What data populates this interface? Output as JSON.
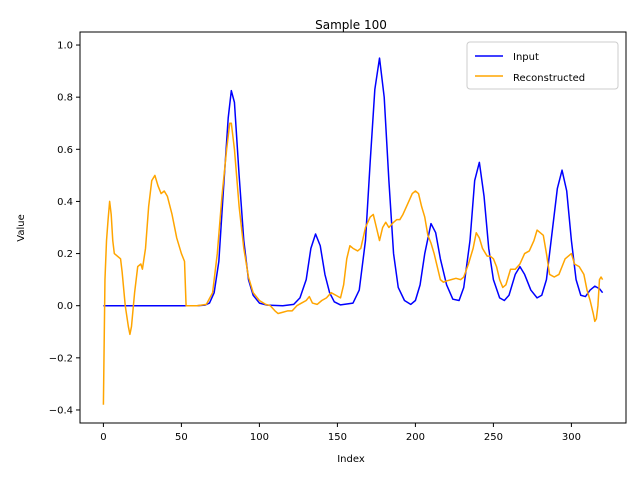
{
  "chart_data": {
    "type": "line",
    "title": "Sample 100",
    "xlabel": "Index",
    "ylabel": "Value",
    "xlim": [
      -15,
      335
    ],
    "ylim": [
      -0.45,
      1.05
    ],
    "xticks": [
      0,
      50,
      100,
      150,
      200,
      250,
      300
    ],
    "yticks": [
      -0.4,
      -0.2,
      0.0,
      0.2,
      0.4,
      0.6,
      0.8,
      1.0
    ],
    "xtick_labels": [
      "0",
      "50",
      "100",
      "150",
      "200",
      "250",
      "300"
    ],
    "ytick_labels": [
      "−0.4",
      "−0.2",
      "0.0",
      "0.2",
      "0.4",
      "0.6",
      "0.8",
      "1.0"
    ],
    "grid": false,
    "legend_position": "top-right",
    "series": [
      {
        "name": "Input",
        "color": "#0000ff",
        "points": [
          [
            0,
            0
          ],
          [
            55,
            0
          ],
          [
            60,
            0
          ],
          [
            65,
            0.002
          ],
          [
            68,
            0.01
          ],
          [
            71,
            0.05
          ],
          [
            74,
            0.17
          ],
          [
            77,
            0.45
          ],
          [
            80,
            0.72
          ],
          [
            82,
            0.825
          ],
          [
            84,
            0.78
          ],
          [
            87,
            0.5
          ],
          [
            90,
            0.25
          ],
          [
            93,
            0.1
          ],
          [
            96,
            0.04
          ],
          [
            100,
            0.01
          ],
          [
            105,
            0.002
          ],
          [
            115,
            0
          ],
          [
            122,
            0.005
          ],
          [
            126,
            0.03
          ],
          [
            130,
            0.1
          ],
          [
            133,
            0.22
          ],
          [
            136,
            0.275
          ],
          [
            139,
            0.23
          ],
          [
            142,
            0.12
          ],
          [
            145,
            0.05
          ],
          [
            148,
            0.015
          ],
          [
            152,
            0.003
          ],
          [
            160,
            0.01
          ],
          [
            164,
            0.06
          ],
          [
            168,
            0.25
          ],
          [
            171,
            0.55
          ],
          [
            174,
            0.83
          ],
          [
            177,
            0.95
          ],
          [
            180,
            0.8
          ],
          [
            183,
            0.48
          ],
          [
            186,
            0.2
          ],
          [
            189,
            0.07
          ],
          [
            193,
            0.02
          ],
          [
            197,
            0.005
          ],
          [
            200,
            0.02
          ],
          [
            203,
            0.08
          ],
          [
            206,
            0.2
          ],
          [
            210,
            0.315
          ],
          [
            213,
            0.28
          ],
          [
            216,
            0.18
          ],
          [
            220,
            0.08
          ],
          [
            224,
            0.025
          ],
          [
            228,
            0.02
          ],
          [
            231,
            0.07
          ],
          [
            235,
            0.25
          ],
          [
            238,
            0.48
          ],
          [
            241,
            0.55
          ],
          [
            244,
            0.42
          ],
          [
            247,
            0.22
          ],
          [
            250,
            0.1
          ],
          [
            254,
            0.03
          ],
          [
            257,
            0.02
          ],
          [
            260,
            0.04
          ],
          [
            264,
            0.12
          ],
          [
            267,
            0.15
          ],
          [
            270,
            0.12
          ],
          [
            274,
            0.06
          ],
          [
            278,
            0.03
          ],
          [
            281,
            0.04
          ],
          [
            284,
            0.1
          ],
          [
            288,
            0.3
          ],
          [
            291,
            0.45
          ],
          [
            294,
            0.52
          ],
          [
            297,
            0.44
          ],
          [
            300,
            0.25
          ],
          [
            303,
            0.1
          ],
          [
            306,
            0.04
          ],
          [
            309,
            0.035
          ],
          [
            312,
            0.06
          ],
          [
            315,
            0.075
          ],
          [
            318,
            0.065
          ],
          [
            320,
            0.05
          ]
        ]
      },
      {
        "name": "Reconstructed",
        "color": "#ffa500",
        "points": [
          [
            0,
            -0.38
          ],
          [
            1,
            0.1
          ],
          [
            2,
            0.25
          ],
          [
            3,
            0.33
          ],
          [
            4,
            0.4
          ],
          [
            5,
            0.35
          ],
          [
            6,
            0.25
          ],
          [
            7,
            0.2
          ],
          [
            9,
            0.19
          ],
          [
            11,
            0.18
          ],
          [
            12,
            0.13
          ],
          [
            14,
            0.0
          ],
          [
            16,
            -0.08
          ],
          [
            17,
            -0.11
          ],
          [
            18,
            -0.08
          ],
          [
            20,
            0.05
          ],
          [
            22,
            0.15
          ],
          [
            24,
            0.16
          ],
          [
            25,
            0.14
          ],
          [
            27,
            0.22
          ],
          [
            29,
            0.38
          ],
          [
            31,
            0.48
          ],
          [
            33,
            0.5
          ],
          [
            35,
            0.46
          ],
          [
            37,
            0.43
          ],
          [
            39,
            0.44
          ],
          [
            41,
            0.42
          ],
          [
            44,
            0.35
          ],
          [
            47,
            0.26
          ],
          [
            50,
            0.2
          ],
          [
            52,
            0.17
          ],
          [
            53,
            0.0
          ],
          [
            60,
            0.0
          ],
          [
            66,
            0.005
          ],
          [
            70,
            0.05
          ],
          [
            73,
            0.2
          ],
          [
            76,
            0.42
          ],
          [
            79,
            0.6
          ],
          [
            81,
            0.7
          ],
          [
            82,
            0.7
          ],
          [
            84,
            0.6
          ],
          [
            87,
            0.38
          ],
          [
            90,
            0.22
          ],
          [
            93,
            0.11
          ],
          [
            96,
            0.05
          ],
          [
            100,
            0.02
          ],
          [
            104,
            0.005
          ],
          [
            107,
            0.0
          ],
          [
            110,
            -0.02
          ],
          [
            112,
            -0.03
          ],
          [
            115,
            -0.025
          ],
          [
            118,
            -0.02
          ],
          [
            121,
            -0.02
          ],
          [
            124,
            0.0
          ],
          [
            127,
            0.01
          ],
          [
            130,
            0.02
          ],
          [
            132,
            0.035
          ],
          [
            134,
            0.01
          ],
          [
            137,
            0.005
          ],
          [
            140,
            0.02
          ],
          [
            143,
            0.03
          ],
          [
            146,
            0.05
          ],
          [
            149,
            0.04
          ],
          [
            152,
            0.03
          ],
          [
            154,
            0.08
          ],
          [
            156,
            0.18
          ],
          [
            158,
            0.23
          ],
          [
            160,
            0.22
          ],
          [
            163,
            0.21
          ],
          [
            165,
            0.22
          ],
          [
            168,
            0.3
          ],
          [
            171,
            0.34
          ],
          [
            173,
            0.35
          ],
          [
            175,
            0.3
          ],
          [
            177,
            0.25
          ],
          [
            179,
            0.3
          ],
          [
            181,
            0.32
          ],
          [
            183,
            0.3
          ],
          [
            186,
            0.32
          ],
          [
            188,
            0.33
          ],
          [
            190,
            0.33
          ],
          [
            192,
            0.35
          ],
          [
            195,
            0.39
          ],
          [
            198,
            0.43
          ],
          [
            200,
            0.44
          ],
          [
            202,
            0.43
          ],
          [
            204,
            0.38
          ],
          [
            206,
            0.34
          ],
          [
            208,
            0.27
          ],
          [
            210,
            0.24
          ],
          [
            212,
            0.2
          ],
          [
            214,
            0.15
          ],
          [
            216,
            0.1
          ],
          [
            218,
            0.09
          ],
          [
            220,
            0.095
          ],
          [
            223,
            0.1
          ],
          [
            226,
            0.105
          ],
          [
            229,
            0.1
          ],
          [
            231,
            0.11
          ],
          [
            234,
            0.16
          ],
          [
            237,
            0.22
          ],
          [
            239,
            0.28
          ],
          [
            241,
            0.26
          ],
          [
            243,
            0.22
          ],
          [
            246,
            0.19
          ],
          [
            248,
            0.19
          ],
          [
            250,
            0.18
          ],
          [
            252,
            0.15
          ],
          [
            254,
            0.1
          ],
          [
            256,
            0.07
          ],
          [
            258,
            0.08
          ],
          [
            261,
            0.14
          ],
          [
            264,
            0.14
          ],
          [
            267,
            0.16
          ],
          [
            270,
            0.2
          ],
          [
            273,
            0.21
          ],
          [
            276,
            0.25
          ],
          [
            278,
            0.29
          ],
          [
            280,
            0.28
          ],
          [
            282,
            0.27
          ],
          [
            284,
            0.2
          ],
          [
            286,
            0.12
          ],
          [
            289,
            0.11
          ],
          [
            292,
            0.12
          ],
          [
            294,
            0.15
          ],
          [
            296,
            0.18
          ],
          [
            298,
            0.19
          ],
          [
            300,
            0.2
          ],
          [
            302,
            0.16
          ],
          [
            305,
            0.15
          ],
          [
            308,
            0.12
          ],
          [
            310,
            0.06
          ],
          [
            312,
            0.02
          ],
          [
            314,
            -0.03
          ],
          [
            315,
            -0.06
          ],
          [
            316,
            -0.05
          ],
          [
            317,
            0.0
          ],
          [
            318,
            0.1
          ],
          [
            319,
            0.11
          ],
          [
            320,
            0.1
          ]
        ]
      }
    ]
  }
}
